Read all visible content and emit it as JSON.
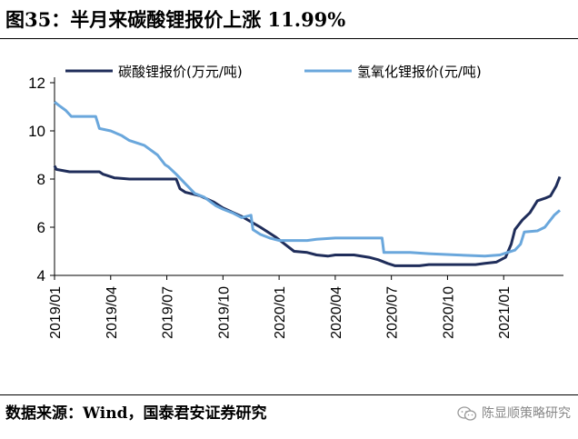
{
  "title": "图35：半月来碳酸锂报价上涨 11.99%",
  "source": "数据来源：Wind，国泰君安证券研究",
  "watermark": "陈显顺策略研究",
  "colors": {
    "carbonate": "#1f2d5a",
    "hydroxide": "#6aa7dc",
    "axis": "#000000"
  },
  "chart_data": {
    "type": "line",
    "title": "图35：半月来碳酸锂报价上涨 11.99%",
    "xlabel": "",
    "ylabel": "",
    "ylim": [
      4,
      12
    ],
    "yticks": [
      4,
      6,
      8,
      10,
      12
    ],
    "xlim": [
      0,
      27
    ],
    "xticks": [
      {
        "m": 0,
        "label": "2019/01"
      },
      {
        "m": 3,
        "label": "2019/04"
      },
      {
        "m": 6,
        "label": "2019/07"
      },
      {
        "m": 9,
        "label": "2019/10"
      },
      {
        "m": 12,
        "label": "2020/01"
      },
      {
        "m": 15,
        "label": "2020/04"
      },
      {
        "m": 18,
        "label": "2020/07"
      },
      {
        "m": 21,
        "label": "2020/10"
      },
      {
        "m": 24,
        "label": "2021/01"
      }
    ],
    "legend_position": "top",
    "series": [
      {
        "name": "碳酸锂报价(万元/吨)",
        "color": "#1f2d5a",
        "points": [
          [
            0,
            8.55
          ],
          [
            0.1,
            8.4
          ],
          [
            0.8,
            8.3
          ],
          [
            2.4,
            8.3
          ],
          [
            2.6,
            8.2
          ],
          [
            3.2,
            8.05
          ],
          [
            4,
            8.0
          ],
          [
            6.5,
            8.0
          ],
          [
            6.7,
            7.6
          ],
          [
            7,
            7.45
          ],
          [
            7.8,
            7.3
          ],
          [
            8.5,
            7.05
          ],
          [
            9,
            6.8
          ],
          [
            10,
            6.45
          ],
          [
            11,
            6.0
          ],
          [
            11.8,
            5.6
          ],
          [
            12.3,
            5.3
          ],
          [
            12.8,
            5.0
          ],
          [
            13.5,
            4.95
          ],
          [
            14,
            4.85
          ],
          [
            14.6,
            4.8
          ],
          [
            15,
            4.85
          ],
          [
            16,
            4.85
          ],
          [
            16.8,
            4.75
          ],
          [
            17.3,
            4.65
          ],
          [
            17.8,
            4.5
          ],
          [
            18.2,
            4.4
          ],
          [
            19.5,
            4.4
          ],
          [
            20,
            4.45
          ],
          [
            22.5,
            4.45
          ],
          [
            23,
            4.5
          ],
          [
            23.6,
            4.55
          ],
          [
            24.1,
            4.75
          ],
          [
            24.4,
            5.3
          ],
          [
            24.6,
            5.9
          ],
          [
            25,
            6.3
          ],
          [
            25.4,
            6.6
          ],
          [
            25.8,
            7.1
          ],
          [
            26.2,
            7.2
          ],
          [
            26.5,
            7.3
          ],
          [
            26.8,
            7.7
          ],
          [
            27,
            8.1
          ]
        ]
      },
      {
        "name": "氢氧化锂报价(元/吨)",
        "color": "#6aa7dc",
        "points": [
          [
            0,
            11.2
          ],
          [
            0.25,
            11.05
          ],
          [
            0.6,
            10.85
          ],
          [
            0.9,
            10.6
          ],
          [
            2.2,
            10.6
          ],
          [
            2.4,
            10.1
          ],
          [
            3,
            10.0
          ],
          [
            3.6,
            9.8
          ],
          [
            4,
            9.6
          ],
          [
            4.8,
            9.4
          ],
          [
            5.5,
            9.0
          ],
          [
            5.9,
            8.6
          ],
          [
            6.1,
            8.5
          ],
          [
            6.5,
            8.2
          ],
          [
            7,
            7.8
          ],
          [
            7.5,
            7.4
          ],
          [
            8,
            7.25
          ],
          [
            8.6,
            6.9
          ],
          [
            9,
            6.75
          ],
          [
            9.5,
            6.6
          ],
          [
            10,
            6.4
          ],
          [
            10.5,
            6.5
          ],
          [
            10.6,
            5.9
          ],
          [
            11,
            5.7
          ],
          [
            11.5,
            5.55
          ],
          [
            12,
            5.45
          ],
          [
            13.5,
            5.45
          ],
          [
            14,
            5.5
          ],
          [
            15,
            5.55
          ],
          [
            16.5,
            5.55
          ],
          [
            17.5,
            5.55
          ],
          [
            17.6,
            4.95
          ],
          [
            19,
            4.95
          ],
          [
            20,
            4.9
          ],
          [
            21.5,
            4.85
          ],
          [
            23,
            4.8
          ],
          [
            23.8,
            4.85
          ],
          [
            24.2,
            4.95
          ],
          [
            24.6,
            5.05
          ],
          [
            24.9,
            5.3
          ],
          [
            25.1,
            5.8
          ],
          [
            25.8,
            5.85
          ],
          [
            26.2,
            6.0
          ],
          [
            26.5,
            6.3
          ],
          [
            26.7,
            6.5
          ],
          [
            27,
            6.7
          ]
        ]
      }
    ]
  }
}
